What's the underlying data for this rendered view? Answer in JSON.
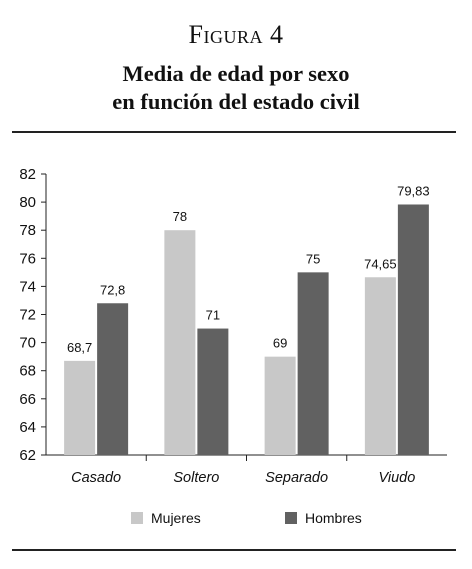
{
  "figure": {
    "label": "Figura 4",
    "title_line1": "Media de edad por sexo",
    "title_line2": "en función del estado civil"
  },
  "chart_data": {
    "type": "bar",
    "title": "Media de edad por sexo en función del estado civil",
    "categories": [
      "Casado",
      "Soltero",
      "Separado",
      "Viudo"
    ],
    "series": [
      {
        "name": "Mujeres",
        "values": [
          68.7,
          78,
          69,
          74.65
        ],
        "labels": [
          "68,7",
          "78",
          "69",
          "74,65"
        ],
        "color": "#c8c8c8"
      },
      {
        "name": "Hombres",
        "values": [
          72.8,
          71,
          75,
          79.83
        ],
        "labels": [
          "72,8",
          "71",
          "75",
          "79,83"
        ],
        "color": "#616161"
      }
    ],
    "ylim": [
      62,
      82
    ],
    "yticks": [
      62,
      64,
      66,
      68,
      70,
      72,
      74,
      76,
      78,
      80,
      82
    ],
    "grid": false,
    "legend": "bottom"
  }
}
